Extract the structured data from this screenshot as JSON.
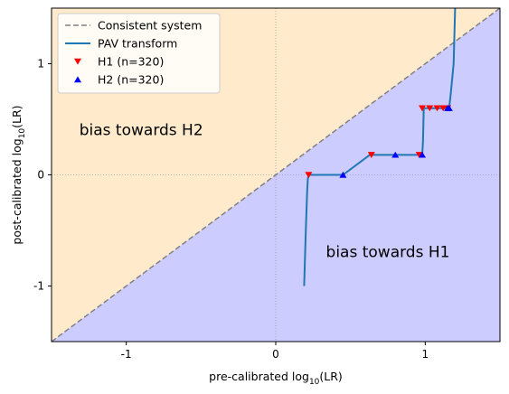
{
  "chart_data": {
    "type": "line",
    "xlabel": "pre-calibrated log",
    "ylabel": "post-calibrated log",
    "label_sub": "10",
    "label_suffix": "(LR)",
    "xlim": [
      -1.5,
      1.5
    ],
    "ylim": [
      -1.5,
      1.5
    ],
    "xticks": [
      -1,
      0,
      1
    ],
    "yticks": [
      -1,
      0,
      1
    ],
    "xtick_labels": [
      "-1",
      "0",
      "1"
    ],
    "ytick_labels": [
      "-1",
      "0",
      "1"
    ],
    "grid": "dotted lines at x=0 and y=0",
    "legend_position": "top-left",
    "regions": [
      {
        "label": "bias towards H2",
        "color": "#ffebcc",
        "side": "above diagonal",
        "label_at": [
          -0.9,
          0.4
        ]
      },
      {
        "label": "bias towards H1",
        "color": "#ccccff",
        "side": "below diagonal",
        "label_at": [
          0.75,
          -0.7
        ]
      }
    ],
    "series": [
      {
        "name": "Consistent system",
        "kind": "line",
        "style": "dashed",
        "color": "#808080",
        "points": [
          [
            -1.5,
            -1.5
          ],
          [
            1.5,
            1.5
          ]
        ]
      },
      {
        "name": "PAV transform",
        "kind": "line",
        "style": "solid",
        "color": "#1f77b4",
        "points": [
          [
            0.19,
            -1.0
          ],
          [
            0.2,
            -0.55
          ],
          [
            0.21,
            -0.15
          ],
          [
            0.215,
            -0.03
          ],
          [
            0.225,
            0.0
          ],
          [
            0.45,
            0.0
          ],
          [
            0.63,
            0.18
          ],
          [
            0.98,
            0.18
          ],
          [
            0.985,
            0.3
          ],
          [
            0.99,
            0.6
          ],
          [
            1.16,
            0.6
          ],
          [
            1.17,
            0.72
          ],
          [
            1.19,
            1.0
          ],
          [
            1.2,
            1.5
          ]
        ]
      },
      {
        "name": "H1 (n=320)",
        "kind": "scatter",
        "marker": "triangle-down",
        "color": "#ff0000",
        "points": [
          [
            0.22,
            0.0
          ],
          [
            0.64,
            0.18
          ],
          [
            0.96,
            0.18
          ],
          [
            0.98,
            0.6
          ],
          [
            1.03,
            0.6
          ],
          [
            1.08,
            0.6
          ],
          [
            1.12,
            0.6
          ],
          [
            1.15,
            0.6
          ]
        ]
      },
      {
        "name": "H2 (n=320)",
        "kind": "scatter",
        "marker": "triangle-up",
        "color": "#0000ff",
        "points": [
          [
            0.45,
            0.0
          ],
          [
            0.8,
            0.18
          ],
          [
            0.98,
            0.18
          ],
          [
            1.15,
            0.6
          ],
          [
            1.16,
            0.6
          ]
        ]
      }
    ]
  }
}
